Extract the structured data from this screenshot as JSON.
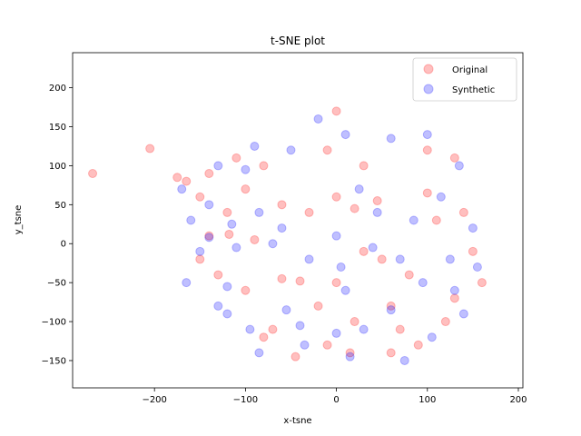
{
  "chart_data": {
    "type": "scatter",
    "title": "t-SNE plot",
    "xlabel": "x-tsne",
    "ylabel": "y_tsne",
    "xlim": [
      -290,
      205
    ],
    "ylim": [
      -185,
      245
    ],
    "xticks": [
      -200,
      -100,
      0,
      100,
      200
    ],
    "yticks": [
      -150,
      -100,
      -50,
      0,
      50,
      100,
      150,
      200
    ],
    "grid": false,
    "legend_position": "top-right",
    "point_alpha": 0.25,
    "series": [
      {
        "name": "Original",
        "color": "#ff0000",
        "points": [
          [
            -268,
            90
          ],
          [
            -205,
            122
          ],
          [
            -140,
            10
          ],
          [
            -118,
            12
          ],
          [
            -90,
            5
          ],
          [
            -60,
            -45
          ],
          [
            -40,
            -48
          ],
          [
            -45,
            -145
          ],
          [
            -80,
            -120
          ],
          [
            -10,
            -130
          ],
          [
            15,
            -140
          ],
          [
            60,
            -80
          ],
          [
            70,
            -110
          ],
          [
            100,
            65
          ],
          [
            130,
            -70
          ],
          [
            -175,
            85
          ],
          [
            -165,
            80
          ],
          [
            -150,
            60
          ],
          [
            -120,
            40
          ],
          [
            -100,
            70
          ],
          [
            -60,
            50
          ],
          [
            -30,
            40
          ],
          [
            0,
            60
          ],
          [
            20,
            45
          ],
          [
            45,
            55
          ],
          [
            30,
            100
          ],
          [
            -10,
            120
          ],
          [
            0,
            170
          ],
          [
            30,
            -10
          ],
          [
            50,
            -20
          ],
          [
            80,
            -40
          ],
          [
            110,
            30
          ],
          [
            140,
            40
          ],
          [
            150,
            -10
          ],
          [
            160,
            -50
          ],
          [
            120,
            -100
          ],
          [
            90,
            -130
          ],
          [
            -20,
            -80
          ],
          [
            0,
            -50
          ],
          [
            -100,
            -60
          ],
          [
            -130,
            -40
          ],
          [
            -150,
            -20
          ],
          [
            -70,
            -110
          ],
          [
            20,
            -100
          ],
          [
            60,
            -140
          ],
          [
            100,
            120
          ],
          [
            130,
            110
          ],
          [
            -80,
            100
          ],
          [
            -110,
            110
          ],
          [
            -140,
            90
          ]
        ]
      },
      {
        "name": "Synthetic",
        "color": "#0000ff",
        "points": [
          [
            -140,
            8
          ],
          [
            -110,
            -5
          ],
          [
            -70,
            0
          ],
          [
            -55,
            -85
          ],
          [
            -35,
            -130
          ],
          [
            10,
            -60
          ],
          [
            15,
            -145
          ],
          [
            60,
            -85
          ],
          [
            105,
            -120
          ],
          [
            130,
            -60
          ],
          [
            -120,
            -55
          ],
          [
            -130,
            -80
          ],
          [
            -95,
            -110
          ],
          [
            0,
            10
          ],
          [
            25,
            70
          ],
          [
            45,
            40
          ],
          [
            85,
            30
          ],
          [
            115,
            60
          ],
          [
            135,
            100
          ],
          [
            100,
            140
          ],
          [
            60,
            135
          ],
          [
            10,
            140
          ],
          [
            -20,
            160
          ],
          [
            -50,
            120
          ],
          [
            -90,
            125
          ],
          [
            -130,
            100
          ],
          [
            -170,
            70
          ],
          [
            -160,
            30
          ],
          [
            -150,
            -10
          ],
          [
            -165,
            -50
          ],
          [
            -120,
            -90
          ],
          [
            -85,
            -140
          ],
          [
            -40,
            -105
          ],
          [
            0,
            -115
          ],
          [
            30,
            -110
          ],
          [
            75,
            -150
          ],
          [
            140,
            -90
          ],
          [
            155,
            -30
          ],
          [
            150,
            20
          ],
          [
            125,
            -20
          ],
          [
            95,
            -50
          ],
          [
            70,
            -20
          ],
          [
            40,
            -5
          ],
          [
            5,
            -30
          ],
          [
            -30,
            -20
          ],
          [
            -60,
            20
          ],
          [
            -85,
            40
          ],
          [
            -115,
            25
          ],
          [
            -140,
            50
          ],
          [
            -100,
            95
          ]
        ]
      }
    ]
  }
}
